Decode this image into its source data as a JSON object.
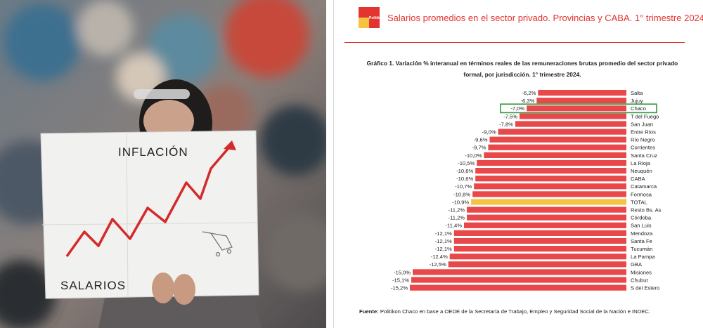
{
  "photo": {
    "sign_top_text": "INFLACIÓN",
    "sign_bottom_text": "SALARIOS"
  },
  "header": {
    "logo_word": "Politikon",
    "title": "Salarios promedios en el sector privado. Provincias y CABA. 1° trimestre 2024"
  },
  "chart_title": "Gráfico 1. Variación % interanual en términos reales de las remuneraciones brutas promedio del sector privado formal, por jurisdicción. 1° trimestre 2024.",
  "source": {
    "label": "Fuente:",
    "text": " Politikon Chaco en base a OEDE de la Secretaría de Trabajo, Empleo y Seguridad Social de la Nación e INDEC."
  },
  "colors": {
    "bar": "#e8484a",
    "total_bar": "#f5c242",
    "highlight_box": "#2e9a3b",
    "accent": "#e3342f"
  },
  "chart_data": {
    "type": "bar",
    "orientation": "horizontal",
    "categories": [
      "Salta",
      "Jujuy",
      "Chaco",
      "T del Fuego",
      "San Juan",
      "Entre Ríos",
      "Río Negro",
      "Corrientes",
      "Santa Cruz",
      "La Rioja",
      "Neuquén",
      "CABA",
      "Catamarca",
      "Formosa",
      "TOTAL",
      "Resto Bs. As",
      "Córdoba",
      "San Luis",
      "Mendoza",
      "Santa Fe",
      "Tucumán",
      "La Pampa",
      "GBA",
      "Misiones",
      "Chubut",
      "S del Estero"
    ],
    "values": [
      -6.2,
      -6.3,
      -7.0,
      -7.5,
      -7.8,
      -9.0,
      -9.6,
      -9.7,
      -10.0,
      -10.5,
      -10.6,
      -10.6,
      -10.7,
      -10.8,
      -10.9,
      -11.2,
      -11.2,
      -11.4,
      -12.1,
      -12.1,
      -12.1,
      -12.4,
      -12.5,
      -15.0,
      -15.1,
      -15.2
    ],
    "value_labels": [
      "-6,2%",
      "-6,3%",
      "-7,0%",
      "-7,5%",
      "-7,8%",
      "-9,0%",
      "-9,6%",
      "-9,7%",
      "-10,0%",
      "-10,5%",
      "-10,6%",
      "-10,6%",
      "-10,7%",
      "-10,8%",
      "-10,9%",
      "-11,2%",
      "-11,2%",
      "-11,4%",
      "-12,1%",
      "-12,1%",
      "-12,1%",
      "-12,4%",
      "-12,5%",
      "-15,0%",
      "-15,1%",
      "-15,2%"
    ],
    "highlighted_category": "Chaco",
    "total_category": "TOTAL",
    "xlim": [
      -16,
      0
    ]
  }
}
